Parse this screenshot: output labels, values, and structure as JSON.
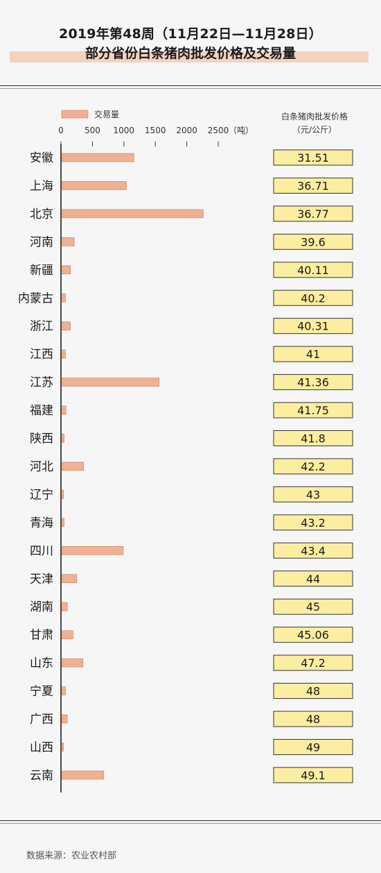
{
  "title": {
    "line1": "2019年第48周（11月22日—11月28日）",
    "line2": "部分省份白条猪肉批发价格及交易量"
  },
  "source": "数据来源：农业农村部",
  "colors": {
    "bar": "#eeb193",
    "bar_stroke": "#c97f5e",
    "price_box": "#fbeea0",
    "price_box_stroke": "#333333"
  },
  "chart_data": [
    {
      "type": "bar",
      "orientation": "horizontal",
      "legend": "交易量",
      "axis_unit": "（吨）",
      "xlim": [
        0,
        2500
      ],
      "ticks": [
        0,
        500,
        1000,
        1500,
        2000,
        2500
      ],
      "categories": [
        "安徽",
        "上海",
        "北京",
        "河南",
        "新疆",
        "内蒙古",
        "浙江",
        "江西",
        "江苏",
        "福建",
        "陕西",
        "河北",
        "辽宁",
        "青海",
        "四川",
        "天津",
        "湖南",
        "甘肃",
        "山东",
        "宁夏",
        "广西",
        "山西",
        "云南"
      ],
      "values": [
        1150,
        1030,
        2250,
        200,
        140,
        60,
        140,
        60,
        1550,
        70,
        40,
        350,
        30,
        40,
        980,
        240,
        90,
        180,
        340,
        60,
        90,
        30,
        670
      ]
    },
    {
      "type": "table",
      "header_line1": "白条猪肉批发价格",
      "header_line2": "（元/公斤）",
      "categories": [
        "安徽",
        "上海",
        "北京",
        "河南",
        "新疆",
        "内蒙古",
        "浙江",
        "江西",
        "江苏",
        "福建",
        "陕西",
        "河北",
        "辽宁",
        "青海",
        "四川",
        "天津",
        "湖南",
        "甘肃",
        "山东",
        "宁夏",
        "广西",
        "山西",
        "云南"
      ],
      "values": [
        "31.51",
        "36.71",
        "36.77",
        "39.6",
        "40.11",
        "40.2",
        "40.31",
        "41",
        "41.36",
        "41.75",
        "41.8",
        "42.2",
        "43",
        "43.2",
        "43.4",
        "44",
        "45",
        "45.06",
        "47.2",
        "48",
        "48",
        "49",
        "49.1"
      ]
    }
  ]
}
